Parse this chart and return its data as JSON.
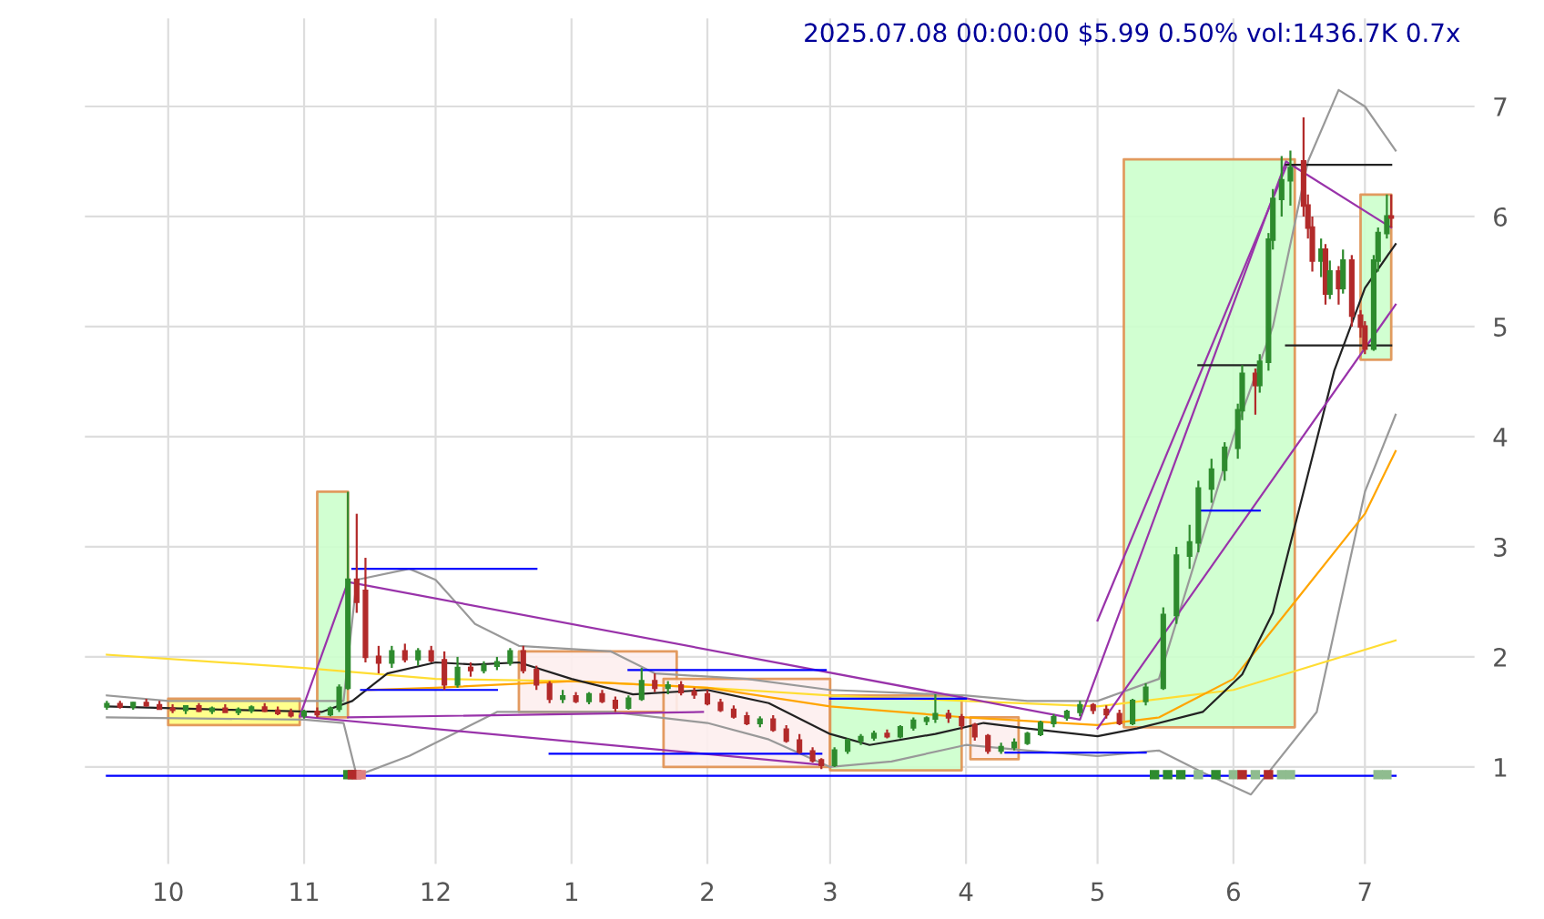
{
  "chart_data": {
    "type": "candlestick",
    "title": "2025.07.08 00:00:00 $5.99 0.50% vol:1436.7K 0.7x",
    "colors": [
      "#2e8b2e",
      "#b22a2a",
      "#2e8b2e",
      "#b22a2a",
      "#b22a2a",
      "#b22a2a",
      "#2e8b2e",
      "#b22a2a",
      "#2e8b2e",
      "#b22a2a",
      "#2e8b2e",
      "#2e8b2e",
      "#b22a2a",
      "#b22a2a",
      "#b22a2a",
      "#2e8b2e",
      "#b22a2a",
      "#2e8b2e",
      "#2e8b2e",
      "#2e8b2e",
      "#b22a2a",
      "#b22a2a",
      "#b22a2a",
      "#2e8b2e",
      "#b22a2a",
      "#2e8b2e",
      "#b22a2a",
      "#b22a2a",
      "#2e8b2e",
      "#b22a2a",
      "#2e8b2e",
      "#2e8b2e",
      "#2e8b2e",
      "#b22a2a",
      "#b22a2a",
      "#b22a2a",
      "#2e8b2e",
      "#b22a2a",
      "#2e8b2e",
      "#b22a2a",
      "#b22a2a",
      "#2e8b2e",
      "#2e8b2e",
      "#b22a2a",
      "#2e8b2e",
      "#b22a2a",
      "#b22a2a",
      "#b22a2a",
      "#b22a2a",
      "#b22a2a",
      "#b22a2a",
      "#2e8b2e",
      "#b22a2a",
      "#b22a2a",
      "#b22a2a",
      "#b22a2a",
      "#b22a2a",
      "#2e8b2e",
      "#2e8b2e",
      "#2e8b2e",
      "#2e8b2e",
      "#b22a2a",
      "#2e8b2e",
      "#2e8b2e",
      "#2e8b2e",
      "#2e8b2e",
      "#b22a2a",
      "#b22a2a",
      "#b22a2a",
      "#b22a2a",
      "#2e8b2e",
      "#2e8b2e",
      "#2e8b2e",
      "#2e8b2e",
      "#2e8b2e",
      "#2e8b2e",
      "#2e8b2e",
      "#b22a2a",
      "#b22a2a",
      "#b22a2a",
      "#2e8b2e",
      "#2e8b2e",
      "#2e8b2e",
      "#2e8b2e",
      "#2e8b2e",
      "#2e8b2e",
      "#2e8b2e",
      "#2e8b2e",
      "#2e8b2e",
      "#2e8b2e",
      "#b22a2a",
      "#2e8b2e",
      "#2e8b2e",
      "#2e8b2e",
      "#2e8b2e",
      "#2e8b2e",
      "#b22a2a",
      "#b22a2a",
      "#b22a2a",
      "#2e8b2e",
      "#b22a2a",
      "#2e8b2e",
      "#b22a2a",
      "#2e8b2e",
      "#b22a2a",
      "#b22a2a",
      "#b22a2a",
      "#2e8b2e",
      "#2e8b2e",
      "#2e8b2e",
      "#b22a2a"
    ],
    "x": [
      "2024-09-17",
      "2024-09-20",
      "2024-09-23",
      "2024-09-26",
      "2024-09-29",
      "2024-10-02",
      "2024-10-05",
      "2024-10-08",
      "2024-10-11",
      "2024-10-14",
      "2024-10-17",
      "2024-10-20",
      "2024-10-23",
      "2024-10-26",
      "2024-10-29",
      "2024-11-01",
      "2024-11-04",
      "2024-11-07",
      "2024-11-09",
      "2024-11-11",
      "2024-11-13",
      "2024-11-15",
      "2024-11-18",
      "2024-11-21",
      "2024-11-24",
      "2024-11-27",
      "2024-11-30",
      "2024-12-03",
      "2024-12-06",
      "2024-12-09",
      "2024-12-12",
      "2024-12-15",
      "2024-12-18",
      "2024-12-21",
      "2024-12-24",
      "2024-12-27",
      "2024-12-30",
      "2025-01-02",
      "2025-01-05",
      "2025-01-08",
      "2025-01-11",
      "2025-01-14",
      "2025-01-17",
      "2025-01-20",
      "2025-01-23",
      "2025-01-26",
      "2025-01-29",
      "2025-02-01",
      "2025-02-04",
      "2025-02-07",
      "2025-02-10",
      "2025-02-13",
      "2025-02-16",
      "2025-02-19",
      "2025-02-22",
      "2025-02-25",
      "2025-02-27",
      "2025-03-02",
      "2025-03-05",
      "2025-03-08",
      "2025-03-11",
      "2025-03-14",
      "2025-03-17",
      "2025-03-20",
      "2025-03-23",
      "2025-03-25",
      "2025-03-28",
      "2025-03-31",
      "2025-04-03",
      "2025-04-06",
      "2025-04-09",
      "2025-04-12",
      "2025-04-15",
      "2025-04-18",
      "2025-04-21",
      "2025-04-24",
      "2025-04-27",
      "2025-04-30",
      "2025-05-03",
      "2025-05-06",
      "2025-05-09",
      "2025-05-12",
      "2025-05-16",
      "2025-05-19",
      "2025-05-22",
      "2025-05-24",
      "2025-05-27",
      "2025-05-30",
      "2025-06-02",
      "2025-06-03",
      "2025-06-06",
      "2025-06-07",
      "2025-06-09",
      "2025-06-10",
      "2025-06-12",
      "2025-06-14",
      "2025-06-17",
      "2025-06-18",
      "2025-06-19",
      "2025-06-21",
      "2025-06-22",
      "2025-06-23",
      "2025-06-25",
      "2025-06-26",
      "2025-06-28",
      "2025-06-30",
      "2025-07-01",
      "2025-07-03",
      "2025-07-04",
      "2025-07-06",
      "2025-07-07"
    ],
    "ohlc": [
      [
        1.55,
        1.6,
        1.52,
        1.57
      ],
      [
        1.57,
        1.6,
        1.53,
        1.55
      ],
      [
        1.55,
        1.59,
        1.52,
        1.58
      ],
      [
        1.58,
        1.62,
        1.55,
        1.56
      ],
      [
        1.56,
        1.6,
        1.52,
        1.53
      ],
      [
        1.53,
        1.57,
        1.49,
        1.52
      ],
      [
        1.52,
        1.56,
        1.48,
        1.55
      ],
      [
        1.55,
        1.58,
        1.5,
        1.51
      ],
      [
        1.51,
        1.55,
        1.48,
        1.53
      ],
      [
        1.53,
        1.57,
        1.5,
        1.5
      ],
      [
        1.5,
        1.54,
        1.47,
        1.52
      ],
      [
        1.52,
        1.56,
        1.49,
        1.54
      ],
      [
        1.54,
        1.58,
        1.5,
        1.51
      ],
      [
        1.51,
        1.55,
        1.47,
        1.49
      ],
      [
        1.49,
        1.53,
        1.45,
        1.47
      ],
      [
        1.47,
        1.52,
        1.44,
        1.5
      ],
      [
        1.5,
        1.54,
        1.45,
        1.48
      ],
      [
        1.48,
        1.55,
        1.46,
        1.53
      ],
      [
        1.53,
        1.75,
        1.5,
        1.72
      ],
      [
        1.72,
        3.5,
        1.7,
        2.7
      ],
      [
        2.7,
        3.3,
        2.4,
        2.5
      ],
      [
        2.6,
        2.9,
        1.95,
        2.0
      ],
      [
        2.0,
        2.1,
        1.85,
        1.95
      ],
      [
        1.95,
        2.1,
        1.9,
        2.05
      ],
      [
        2.05,
        2.12,
        1.95,
        1.98
      ],
      [
        1.98,
        2.08,
        1.92,
        2.05
      ],
      [
        2.05,
        2.1,
        1.95,
        1.97
      ],
      [
        1.97,
        2.05,
        1.7,
        1.75
      ],
      [
        1.75,
        2.0,
        1.72,
        1.9
      ],
      [
        1.9,
        1.95,
        1.82,
        1.88
      ],
      [
        1.88,
        1.96,
        1.85,
        1.92
      ],
      [
        1.92,
        2.0,
        1.88,
        1.95
      ],
      [
        1.95,
        2.08,
        1.92,
        2.05
      ],
      [
        2.05,
        2.1,
        1.85,
        1.88
      ],
      [
        1.88,
        1.92,
        1.7,
        1.75
      ],
      [
        1.75,
        1.78,
        1.58,
        1.62
      ],
      [
        1.62,
        1.7,
        1.58,
        1.64
      ],
      [
        1.64,
        1.68,
        1.58,
        1.6
      ],
      [
        1.6,
        1.68,
        1.57,
        1.66
      ],
      [
        1.66,
        1.7,
        1.58,
        1.6
      ],
      [
        1.6,
        1.64,
        1.5,
        1.54
      ],
      [
        1.54,
        1.65,
        1.52,
        1.62
      ],
      [
        1.62,
        1.9,
        1.6,
        1.78
      ],
      [
        1.78,
        1.85,
        1.68,
        1.72
      ],
      [
        1.72,
        1.78,
        1.66,
        1.74
      ],
      [
        1.74,
        1.78,
        1.65,
        1.68
      ],
      [
        1.68,
        1.72,
        1.62,
        1.66
      ],
      [
        1.66,
        1.7,
        1.56,
        1.58
      ],
      [
        1.58,
        1.62,
        1.5,
        1.52
      ],
      [
        1.52,
        1.56,
        1.44,
        1.46
      ],
      [
        1.46,
        1.5,
        1.38,
        1.4
      ],
      [
        1.4,
        1.46,
        1.36,
        1.43
      ],
      [
        1.43,
        1.47,
        1.32,
        1.34
      ],
      [
        1.34,
        1.38,
        1.22,
        1.24
      ],
      [
        1.24,
        1.3,
        1.12,
        1.14
      ],
      [
        1.14,
        1.18,
        1.04,
        1.06
      ],
      [
        1.06,
        1.08,
        0.98,
        1.02
      ],
      [
        1.02,
        1.18,
        1.0,
        1.15
      ],
      [
        1.15,
        1.26,
        1.12,
        1.24
      ],
      [
        1.24,
        1.3,
        1.2,
        1.27
      ],
      [
        1.27,
        1.33,
        1.24,
        1.3
      ],
      [
        1.3,
        1.34,
        1.26,
        1.28
      ],
      [
        1.28,
        1.38,
        1.26,
        1.36
      ],
      [
        1.36,
        1.45,
        1.33,
        1.42
      ],
      [
        1.42,
        1.46,
        1.38,
        1.44
      ],
      [
        1.44,
        1.66,
        1.4,
        1.48
      ],
      [
        1.48,
        1.52,
        1.4,
        1.45
      ],
      [
        1.45,
        1.48,
        1.34,
        1.38
      ],
      [
        1.38,
        1.4,
        1.24,
        1.28
      ],
      [
        1.28,
        1.3,
        1.12,
        1.15
      ],
      [
        1.15,
        1.22,
        1.12,
        1.18
      ],
      [
        1.18,
        1.26,
        1.15,
        1.22
      ],
      [
        1.22,
        1.32,
        1.2,
        1.3
      ],
      [
        1.3,
        1.42,
        1.28,
        1.4
      ],
      [
        1.4,
        1.48,
        1.36,
        1.45
      ],
      [
        1.45,
        1.52,
        1.42,
        1.5
      ],
      [
        1.5,
        1.6,
        1.46,
        1.56
      ],
      [
        1.56,
        1.58,
        1.48,
        1.52
      ],
      [
        1.52,
        1.56,
        1.44,
        1.48
      ],
      [
        1.48,
        1.52,
        1.38,
        1.4
      ],
      [
        1.4,
        1.62,
        1.38,
        1.6
      ],
      [
        1.6,
        1.76,
        1.56,
        1.72
      ],
      [
        1.72,
        2.45,
        1.7,
        2.38
      ],
      [
        2.38,
        3.0,
        2.3,
        2.92
      ],
      [
        2.92,
        3.2,
        2.8,
        3.04
      ],
      [
        3.04,
        3.6,
        2.95,
        3.53
      ],
      [
        3.53,
        3.8,
        3.4,
        3.7
      ],
      [
        3.7,
        3.95,
        3.6,
        3.9
      ],
      [
        3.9,
        4.3,
        3.8,
        4.24
      ],
      [
        4.24,
        4.65,
        4.15,
        4.57
      ],
      [
        4.57,
        4.62,
        4.2,
        4.47
      ],
      [
        4.47,
        4.75,
        4.4,
        4.68
      ],
      [
        4.68,
        5.85,
        4.6,
        5.79
      ],
      [
        5.79,
        6.25,
        5.7,
        6.16
      ],
      [
        6.16,
        6.55,
        6.0,
        6.33
      ],
      [
        6.33,
        6.6,
        6.1,
        6.44
      ],
      [
        6.5,
        6.9,
        6.0,
        6.1
      ],
      [
        6.1,
        6.2,
        5.8,
        5.9
      ],
      [
        5.9,
        6.0,
        5.5,
        5.6
      ],
      [
        5.6,
        5.8,
        5.45,
        5.7
      ],
      [
        5.7,
        5.75,
        5.2,
        5.3
      ],
      [
        5.3,
        5.6,
        5.25,
        5.5
      ],
      [
        5.5,
        5.55,
        5.2,
        5.35
      ],
      [
        5.35,
        5.7,
        5.3,
        5.6
      ],
      [
        5.6,
        5.65,
        5.0,
        5.1
      ],
      [
        5.1,
        5.15,
        4.9,
        5.0
      ],
      [
        5.0,
        5.05,
        4.75,
        4.8
      ],
      [
        4.8,
        5.65,
        4.78,
        5.6
      ],
      [
        5.6,
        5.9,
        5.5,
        5.85
      ],
      [
        5.85,
        6.2,
        5.8,
        6.0
      ],
      [
        6.0,
        6.2,
        5.9,
        5.99
      ]
    ],
    "xlim": [
      "2024-09-12",
      "2025-07-26"
    ],
    "ylim": [
      0.12,
      7.8
    ],
    "xticks": [
      {
        "value": "2024-10-01",
        "label": "10"
      },
      {
        "value": "2024-11-01",
        "label": "11"
      },
      {
        "value": "2024-12-01",
        "label": "12"
      },
      {
        "value": "2025-01-01",
        "label": "1"
      },
      {
        "value": "2025-02-01",
        "label": "2"
      },
      {
        "value": "2025-03-01",
        "label": "3"
      },
      {
        "value": "2025-04-01",
        "label": "4"
      },
      {
        "value": "2025-05-01",
        "label": "5"
      },
      {
        "value": "2025-06-01",
        "label": "6"
      },
      {
        "value": "2025-07-01",
        "label": "7"
      }
    ],
    "yticks": [
      1,
      2,
      3,
      4,
      5,
      6,
      7
    ],
    "grid": true,
    "series": [
      {
        "type": "line",
        "color": "#ffff80",
        "x": [
          "2024-10-01",
          "2024-10-31"
        ],
        "values": [
          null,
          null
        ],
        "lower": [
          1.38,
          1.38
        ],
        "upper": [
          1.62,
          1.62
        ]
      },
      {
        "type": "line",
        "color": "#ccffcc",
        "x": [
          "2024-11-04",
          "2024-11-11"
        ],
        "values": [
          null,
          null
        ],
        "lower": [
          1.45,
          1.45
        ],
        "upper": [
          3.5,
          3.5
        ]
      },
      {
        "type": "line",
        "color": "#fdeeee",
        "x": [
          "2024-12-20",
          "2025-01-25"
        ],
        "values": [
          null,
          null
        ],
        "lower": [
          1.5,
          1.5
        ],
        "upper": [
          2.05,
          2.05
        ]
      },
      {
        "type": "line",
        "color": "#fdeeee",
        "x": [
          "2025-01-22",
          "2025-03-01"
        ],
        "values": [
          null,
          null
        ],
        "lower": [
          1.0,
          1.0
        ],
        "upper": [
          1.8,
          1.8
        ]
      },
      {
        "type": "line",
        "color": "#ccffcc",
        "x": [
          "2025-03-01",
          "2025-03-31"
        ],
        "values": [
          null,
          null
        ],
        "lower": [
          0.97,
          0.97
        ],
        "upper": [
          1.65,
          1.65
        ]
      },
      {
        "type": "line",
        "color": "#fdeeee",
        "x": [
          "2025-04-02",
          "2025-04-13"
        ],
        "values": [
          null,
          null
        ],
        "lower": [
          1.07,
          1.07
        ],
        "upper": [
          1.45,
          1.45
        ]
      },
      {
        "type": "line",
        "color": "#ccffcc",
        "x": [
          "2025-05-07",
          "2025-06-15"
        ],
        "values": [
          null,
          null
        ],
        "lower": [
          1.36,
          1.36
        ],
        "upper": [
          6.52,
          6.52
        ]
      },
      {
        "type": "line",
        "color": "#ccffcc",
        "x": [
          "2025-06-30",
          "2025-07-07"
        ],
        "values": [
          null,
          null
        ],
        "lower": [
          4.7,
          4.7
        ],
        "upper": [
          6.2,
          6.2
        ]
      },
      {
        "type": "line",
        "color": "#999999",
        "x": [
          "2024-09-17",
          "2024-10-01",
          "2024-11-01",
          "2024-11-10",
          "2024-11-13",
          "2024-11-25",
          "2024-12-01",
          "2024-12-10",
          "2024-12-20",
          "2025-01-10",
          "2025-01-20",
          "2025-02-10",
          "2025-03-01",
          "2025-04-01",
          "2025-04-15",
          "2025-05-01",
          "2025-05-15",
          "2025-06-01",
          "2025-06-10",
          "2025-06-18",
          "2025-06-25",
          "2025-07-01",
          "2025-07-08"
        ],
        "values": [
          1.65,
          1.6,
          1.6,
          1.6,
          2.7,
          2.8,
          2.7,
          2.3,
          2.1,
          2.05,
          1.85,
          1.8,
          1.7,
          1.65,
          1.6,
          1.6,
          1.8,
          4.0,
          5.0,
          6.5,
          7.15,
          7.0,
          6.6
        ]
      },
      {
        "type": "line",
        "color": "#999999",
        "x": [
          "2024-09-17",
          "2024-11-01",
          "2024-11-10",
          "2024-11-13",
          "2024-11-25",
          "2024-12-05",
          "2024-12-15",
          "2024-12-25",
          "2025-01-10",
          "2025-02-01",
          "2025-02-15",
          "2025-03-01",
          "2025-03-15",
          "2025-04-01",
          "2025-04-15",
          "2025-05-01",
          "2025-05-15",
          "2025-05-25",
          "2025-06-05",
          "2025-06-20",
          "2025-07-01",
          "2025-07-08"
        ],
        "values": [
          1.45,
          1.43,
          1.4,
          0.92,
          1.1,
          1.3,
          1.5,
          1.5,
          1.5,
          1.4,
          1.25,
          1.0,
          1.05,
          1.2,
          1.15,
          1.1,
          1.15,
          0.95,
          0.75,
          1.5,
          3.5,
          4.2
        ]
      },
      {
        "type": "line",
        "color": "#ffdd33",
        "x": [
          "2024-09-17",
          "2024-11-01",
          "2024-12-01",
          "2025-01-01",
          "2025-02-01",
          "2025-03-01",
          "2025-04-01",
          "2025-05-01",
          "2025-06-01",
          "2025-07-08"
        ],
        "values": [
          2.02,
          1.9,
          1.8,
          1.78,
          1.72,
          1.65,
          1.6,
          1.55,
          1.7,
          2.15
        ]
      },
      {
        "type": "line",
        "color": "#ffa500",
        "x": [
          "2024-11-15",
          "2024-12-01",
          "2025-01-01",
          "2025-02-01",
          "2025-03-01",
          "2025-04-01",
          "2025-05-01",
          "2025-05-15",
          "2025-06-01",
          "2025-06-15",
          "2025-07-01",
          "2025-07-08"
        ],
        "values": [
          1.7,
          1.72,
          1.78,
          1.72,
          1.55,
          1.45,
          1.38,
          1.45,
          1.8,
          2.5,
          3.3,
          3.87
        ]
      },
      {
        "type": "line",
        "color": "#222222",
        "x": [
          "2024-09-17",
          "2024-10-15",
          "2024-11-05",
          "2024-11-12",
          "2024-11-20",
          "2024-12-01",
          "2024-12-10",
          "2024-12-20",
          "2025-01-01",
          "2025-01-15",
          "2025-02-01",
          "2025-02-15",
          "2025-03-01",
          "2025-03-10",
          "2025-03-25",
          "2025-04-05",
          "2025-04-15",
          "2025-05-01",
          "2025-05-10",
          "2025-05-25",
          "2025-06-03",
          "2025-06-10",
          "2025-06-17",
          "2025-06-24",
          "2025-07-01",
          "2025-07-08"
        ],
        "values": [
          1.55,
          1.52,
          1.5,
          1.6,
          1.85,
          1.95,
          1.93,
          1.95,
          1.8,
          1.66,
          1.7,
          1.58,
          1.3,
          1.2,
          1.3,
          1.4,
          1.35,
          1.28,
          1.35,
          1.5,
          1.84,
          2.4,
          3.5,
          4.6,
          5.35,
          5.75
        ]
      },
      {
        "type": "line",
        "color": "#9933aa",
        "x": [
          "2024-10-31",
          "2024-11-11",
          "2025-04-27",
          "2025-06-13",
          "2025-07-07"
        ],
        "values": [
          1.46,
          2.68,
          1.43,
          6.5,
          5.9
        ]
      },
      {
        "type": "line",
        "color": "#9933aa",
        "x": [
          "2024-10-31",
          "2025-02-27"
        ],
        "values": [
          1.46,
          1.02
        ]
      },
      {
        "type": "line",
        "color": "#9933aa",
        "x": [
          "2024-11-11",
          "2025-01-31"
        ],
        "values": [
          1.45,
          1.5
        ]
      },
      {
        "type": "line",
        "color": "#9933aa",
        "x": [
          "2025-05-01",
          "2025-07-08"
        ],
        "values": [
          1.35,
          5.2
        ]
      },
      {
        "type": "line",
        "color": "#9933aa",
        "x": [
          "2025-05-01",
          "2025-06-13"
        ],
        "values": [
          2.33,
          6.45
        ]
      },
      {
        "type": "line",
        "color": "#0000ff",
        "x": [
          "2024-09-17",
          "2025-07-08"
        ],
        "values": [
          0.92,
          0.92
        ]
      },
      {
        "type": "line",
        "color": "#0000ff",
        "x": [
          "2024-11-12",
          "2024-12-24"
        ],
        "values": [
          2.8,
          2.8
        ]
      },
      {
        "type": "line",
        "color": "#0000ff",
        "x": [
          "2024-11-14",
          "2024-12-15"
        ],
        "values": [
          1.7,
          1.7
        ]
      },
      {
        "type": "line",
        "color": "#0000ff",
        "x": [
          "2025-01-14",
          "2025-02-28"
        ],
        "values": [
          1.88,
          1.88
        ]
      },
      {
        "type": "line",
        "color": "#0000ff",
        "x": [
          "2024-12-27",
          "2025-02-27"
        ],
        "values": [
          1.12,
          1.12
        ]
      },
      {
        "type": "line",
        "color": "#0000ff",
        "x": [
          "2025-03-01",
          "2025-04-01"
        ],
        "values": [
          1.62,
          1.62
        ]
      },
      {
        "type": "line",
        "color": "#0000ff",
        "x": [
          "2025-04-10",
          "2025-05-12"
        ],
        "values": [
          1.13,
          1.13
        ]
      },
      {
        "type": "line",
        "color": "#0000ff",
        "x": [
          "2025-05-24",
          "2025-06-07"
        ],
        "values": [
          3.33,
          3.33
        ]
      },
      {
        "type": "line",
        "color": "#222222",
        "x": [
          "2025-05-24",
          "2025-06-07"
        ],
        "values": [
          4.65,
          4.65
        ]
      },
      {
        "type": "line",
        "color": "#222222",
        "x": [
          "2025-06-13",
          "2025-07-07"
        ],
        "values": [
          6.47,
          6.47
        ]
      },
      {
        "type": "line",
        "color": "#222222",
        "x": [
          "2025-06-13",
          "2025-07-07"
        ],
        "values": [
          4.83,
          4.83
        ]
      },
      {
        "type": "scatter",
        "marker": "square",
        "x": [
          "2024-11-11",
          "2024-11-12",
          "2024-11-13",
          "2024-11-14",
          "2025-05-14",
          "2025-05-17",
          "2025-05-20",
          "2025-05-24",
          "2025-05-28",
          "2025-06-01",
          "2025-06-03",
          "2025-06-06",
          "2025-06-09",
          "2025-06-12",
          "2025-06-14",
          "2025-07-04",
          "2025-07-06"
        ],
        "values": [
          0.93,
          0.93,
          0.93,
          0.93,
          0.93,
          0.93,
          0.93,
          0.93,
          0.93,
          0.93,
          0.93,
          0.93,
          0.93,
          0.93,
          0.93,
          0.93,
          0.93
        ],
        "colors": [
          "#2e8b2e",
          "#b22a2a",
          "#b22a2a",
          "#e08080",
          "#2e8b2e",
          "#2e8b2e",
          "#2e8b2e",
          "#8fbc8f",
          "#2e8b2e",
          "#8fbc8f",
          "#b22a2a",
          "#8fbc8f",
          "#b22a2a",
          "#8fbc8f",
          "#8fbc8f",
          "#8fbc8f",
          "#8fbc8f"
        ]
      }
    ]
  }
}
